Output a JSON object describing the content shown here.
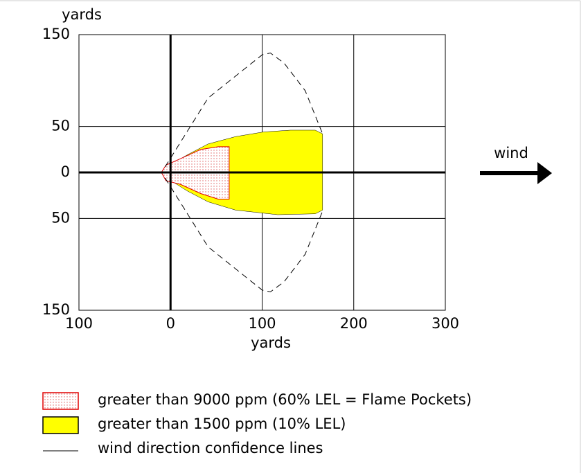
{
  "chart_data": {
    "type": "threat_zone",
    "x_label": "yards",
    "y_label": "yards",
    "xlim": [
      -100,
      300
    ],
    "xticks": [
      {
        "value": -100,
        "label": "100"
      },
      0,
      100,
      200,
      300
    ],
    "ylim": [
      -150,
      150
    ],
    "yticks": [
      {
        "value": 150,
        "label": "150"
      },
      50,
      0,
      {
        "value": -50,
        "label": "50"
      },
      {
        "value": -150,
        "label": "150"
      }
    ],
    "grid": true,
    "wind_label": "wind",
    "series": [
      {
        "name": "greater than 9000 ppm (60% LEL = Flame Pockets)",
        "color": "#e00000",
        "style": "dotted",
        "x": [
          -10,
          -5,
          11,
          33,
          52,
          64,
          64,
          52,
          33,
          11,
          -5
        ],
        "y": [
          0,
          8,
          15,
          25,
          28,
          28,
          -29,
          -29,
          -23,
          -13,
          -9
        ]
      },
      {
        "name": "greater than 1500 ppm (10% LEL)",
        "color": "#ffff00",
        "style": "solid",
        "x": [
          -10,
          -1,
          18,
          41,
          71,
          101,
          131,
          158,
          166,
          166,
          158,
          117,
          71,
          41,
          18,
          -1
        ],
        "y": [
          0,
          8,
          19,
          31,
          39,
          44,
          46,
          46,
          42,
          -41,
          -45,
          -46,
          -41,
          -32,
          -20,
          -8
        ]
      },
      {
        "name": "wind direction confidence lines",
        "color": "#000000",
        "style": "dashed",
        "x": [
          -6,
          41,
          100,
          109,
          124,
          147,
          166,
          null,
          -6,
          41,
          100,
          109,
          124,
          147,
          166
        ],
        "y": [
          6,
          81,
          128,
          130,
          119,
          89,
          42,
          null,
          -6,
          -81,
          -128,
          -130,
          -119,
          -89,
          -42
        ]
      }
    ]
  }
}
